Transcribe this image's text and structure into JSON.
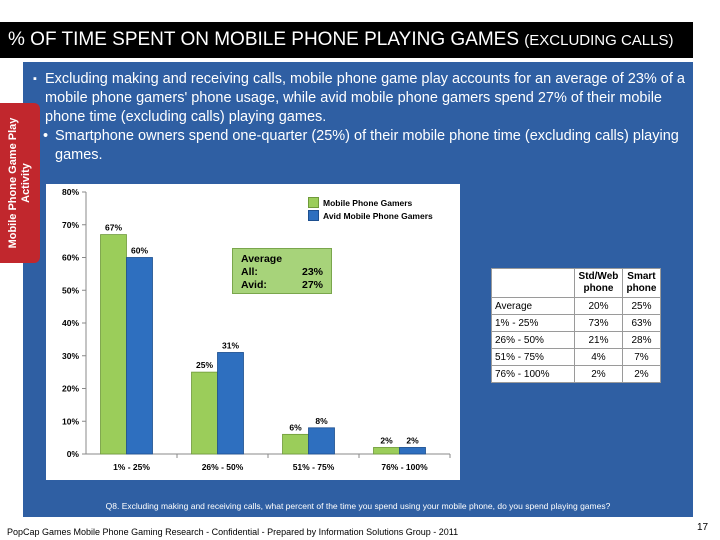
{
  "slide": {
    "title": "% OF TIME SPENT ON MOBILE PHONE PLAYING GAMES",
    "title_suffix": "(EXCLUDING CALLS)",
    "side_tab": "Mobile Phone Game Play Activity",
    "bullet_main": "Excluding making and receiving calls, mobile phone game play accounts for an average of 23% of a mobile phone gamers' phone usage, while avid mobile phone gamers spend 27% of their mobile phone time (excluding calls) playing games.",
    "bullet_sub": "Smartphone owners spend one-quarter (25%) of their mobile phone time (excluding calls) playing games.",
    "question": "Q8. Excluding making and receiving calls, what percent of the time you spend using your mobile phone, do you spend playing games?",
    "footer": "PopCap Games Mobile Phone Gaming Research - Confidential - Prepared by Information Solutions Group - 2011",
    "page_number": "17",
    "colors": {
      "panel": "#2f5fa3",
      "title_bar": "#000000",
      "side_tab": "#c1272d",
      "green": "#9bcd5a",
      "blue": "#2e6fbf"
    }
  },
  "average_box": {
    "title": "Average",
    "rows": [
      {
        "label": "All:",
        "value": "23%"
      },
      {
        "label": "Avid:",
        "value": "27%"
      }
    ]
  },
  "table": {
    "headers": [
      "",
      "Std/Web phone",
      "Smart phone"
    ],
    "rows": [
      [
        "Average",
        "20%",
        "25%"
      ],
      [
        "1% - 25%",
        "73%",
        "63%"
      ],
      [
        "26% - 50%",
        "21%",
        "28%"
      ],
      [
        "51% - 75%",
        "4%",
        "7%"
      ],
      [
        "76% - 100%",
        "2%",
        "2%"
      ]
    ]
  },
  "chart_data": {
    "type": "bar",
    "categories": [
      "1% - 25%",
      "26% - 50%",
      "51% - 75%",
      "76% - 100%"
    ],
    "series": [
      {
        "name": "Mobile Phone Gamers",
        "values": [
          67,
          25,
          6,
          2
        ],
        "labels": [
          "67%",
          "25%",
          "6%",
          "2%"
        ],
        "color": "#9bcd5a"
      },
      {
        "name": "Avid Mobile Phone Gamers",
        "values": [
          60,
          31,
          8,
          2
        ],
        "labels": [
          "60%",
          "31%",
          "8%",
          "2%"
        ],
        "color": "#2e6fbf"
      }
    ],
    "ylim": [
      0,
      80
    ],
    "yticks": [
      0,
      10,
      20,
      30,
      40,
      50,
      60,
      70,
      80
    ],
    "ytick_labels": [
      "0%",
      "10%",
      "20%",
      "30%",
      "40%",
      "50%",
      "60%",
      "70%",
      "80%"
    ],
    "title": "",
    "xlabel": "",
    "ylabel": "",
    "legend": "top-right",
    "grid": false
  }
}
